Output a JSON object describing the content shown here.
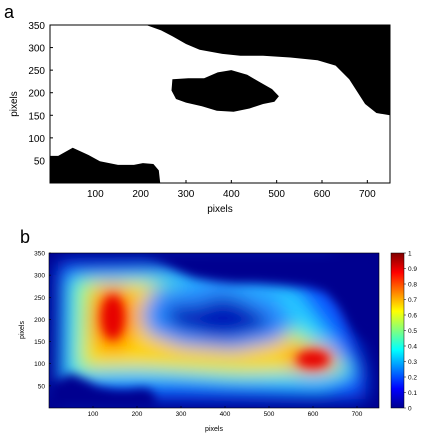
{
  "chart_data": [
    {
      "panel": "a",
      "type": "heatmap",
      "title": "",
      "xlabel": "pixels",
      "ylabel": "pixels",
      "xlim": [
        0,
        750
      ],
      "ylim": [
        0,
        350
      ],
      "xticks": [
        100,
        200,
        300,
        400,
        500,
        600,
        700
      ],
      "yticks": [
        50,
        100,
        150,
        200,
        250,
        300,
        350
      ],
      "colors": {
        "background": "#ffffff",
        "obstacle": "#000000"
      },
      "obstacles": [
        {
          "name": "upper-right",
          "polygon": [
            [
              212,
              350
            ],
            [
              750,
              350
            ],
            [
              750,
              150
            ],
            [
              720,
              155
            ],
            [
              695,
              175
            ],
            [
              660,
              230
            ],
            [
              630,
              260
            ],
            [
              590,
              272
            ],
            [
              530,
              278
            ],
            [
              470,
              282
            ],
            [
              420,
              282
            ],
            [
              380,
              286
            ],
            [
              330,
              295
            ],
            [
              300,
              308
            ],
            [
              270,
              325
            ],
            [
              245,
              338
            ]
          ]
        },
        {
          "name": "center",
          "polygon": [
            [
              270,
              230
            ],
            [
              305,
              232
            ],
            [
              340,
              232
            ],
            [
              370,
              245
            ],
            [
              400,
              250
            ],
            [
              435,
              240
            ],
            [
              460,
              225
            ],
            [
              490,
              208
            ],
            [
              505,
              192
            ],
            [
              495,
              180
            ],
            [
              470,
              175
            ],
            [
              440,
              165
            ],
            [
              405,
              158
            ],
            [
              368,
              160
            ],
            [
              335,
              170
            ],
            [
              300,
              178
            ],
            [
              278,
              186
            ],
            [
              268,
              205
            ]
          ]
        },
        {
          "name": "lower-left",
          "polygon": [
            [
              0,
              0
            ],
            [
              0,
              60
            ],
            [
              18,
              60
            ],
            [
              50,
              78
            ],
            [
              85,
              62
            ],
            [
              110,
              48
            ],
            [
              150,
              40
            ],
            [
              185,
              40
            ],
            [
              205,
              44
            ],
            [
              228,
              42
            ],
            [
              240,
              28
            ],
            [
              243,
              0
            ]
          ]
        }
      ]
    },
    {
      "panel": "b",
      "type": "heatmap",
      "title": "",
      "xlabel": "pixels",
      "ylabel": "pixels",
      "xlim": [
        0,
        750
      ],
      "ylim": [
        0,
        350
      ],
      "xticks": [
        100,
        200,
        300,
        400,
        500,
        600,
        700
      ],
      "yticks": [
        50,
        100,
        150,
        200,
        250,
        300,
        350
      ],
      "colorbar": {
        "range": [
          0,
          1
        ],
        "ticks": [
          "0",
          "0.1",
          "0.2",
          "0.3",
          "0.4",
          "0.5",
          "0.6",
          "0.7",
          "0.8",
          "0.9",
          "1"
        ]
      },
      "colormap": "jet",
      "hotspots": [
        {
          "x": 145,
          "y": 205,
          "peak": 1.0
        },
        {
          "x": 600,
          "y": 110,
          "peak": 0.95
        }
      ],
      "low_regions": [
        {
          "x": 380,
          "y": 205,
          "value": 0.1
        },
        {
          "x": 100,
          "y": 35,
          "value": 0.05
        },
        {
          "x": 650,
          "y": 290,
          "value": 0.0
        }
      ]
    }
  ]
}
